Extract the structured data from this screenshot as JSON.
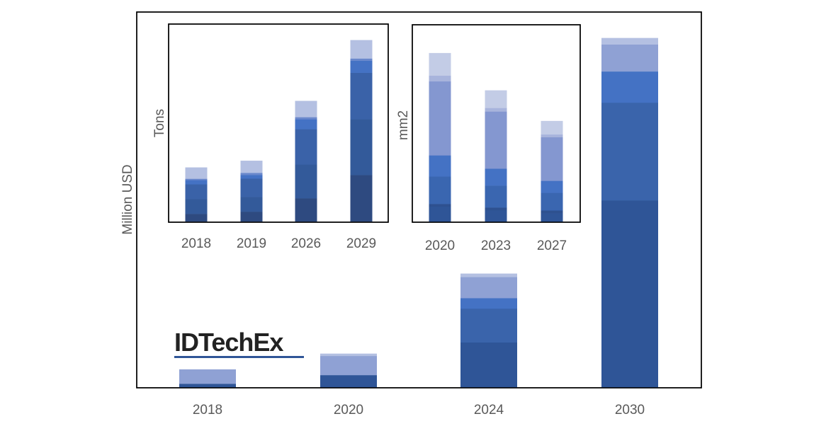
{
  "logo": {
    "text": "IDTechEx",
    "underline_color": "#2f5597"
  },
  "chart_data": [
    {
      "type": "bar",
      "stacked": true,
      "ylabel": "Million USD",
      "xlabel": "",
      "ylim": [
        0,
        100
      ],
      "grid": false,
      "categories": [
        "2018",
        "2020",
        "2024",
        "2030"
      ],
      "series": [
        {
          "color": "#2f5597",
          "values": [
            1.1,
            3.4,
            12.1,
            49.9
          ]
        },
        {
          "color": "#3a64ab",
          "values": [
            0,
            0,
            9.0,
            26.0
          ]
        },
        {
          "color": "#4472c4",
          "values": [
            0,
            0,
            2.8,
            8.3
          ]
        },
        {
          "color": "#8fa1d4",
          "values": [
            3.8,
            5.1,
            5.6,
            7.2
          ]
        },
        {
          "color": "#b4c0e2",
          "values": [
            0,
            0.6,
            0.9,
            1.7
          ]
        }
      ]
    },
    {
      "type": "bar",
      "stacked": true,
      "ylabel": "Tons",
      "xlabel": "",
      "ylim": [
        0,
        100
      ],
      "grid": false,
      "categories": [
        "2018",
        "2019",
        "2026",
        "2029"
      ],
      "series": [
        {
          "color": "#2e4a80",
          "values": [
            3.9,
            5.0,
            11.8,
            23.6
          ]
        },
        {
          "color": "#335a9a",
          "values": [
            7.5,
            7.5,
            17.1,
            28.2
          ]
        },
        {
          "color": "#3a62a8",
          "values": [
            7.5,
            9.3,
            17.9,
            23.6
          ]
        },
        {
          "color": "#4472c4",
          "values": [
            2.1,
            1.8,
            5.0,
            6.1
          ]
        },
        {
          "color": "#6a88cc",
          "values": [
            0.7,
            1.1,
            1.1,
            1.1
          ]
        },
        {
          "color": "#b4c0e2",
          "values": [
            5.7,
            6.1,
            8.2,
            9.3
          ]
        }
      ]
    },
    {
      "type": "bar",
      "stacked": true,
      "ylabel": "mm2",
      "xlabel": "",
      "ylim": [
        0,
        100
      ],
      "grid": false,
      "categories": [
        "2020",
        "2023",
        "2027"
      ],
      "series": [
        {
          "color": "#2f5597",
          "values": [
            7.9,
            6.1,
            4.6
          ]
        },
        {
          "color": "#2e5190",
          "values": [
            1.4,
            1.4,
            1.4
          ]
        },
        {
          "color": "#3a66b0",
          "values": [
            13.9,
            11.1,
            8.9
          ]
        },
        {
          "color": "#4472c4",
          "values": [
            10.7,
            8.6,
            6.1
          ]
        },
        {
          "color": "#8497d0",
          "values": [
            37.5,
            28.9,
            22.1
          ]
        },
        {
          "color": "#a8b4dc",
          "values": [
            2.9,
            1.8,
            1.4
          ]
        },
        {
          "color": "#c3cce6",
          "values": [
            11.4,
            8.9,
            6.8
          ]
        }
      ]
    }
  ]
}
